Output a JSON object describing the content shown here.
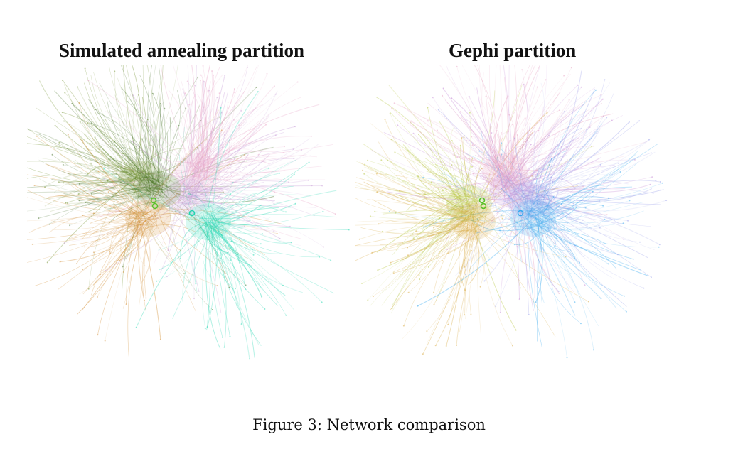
{
  "figure": {
    "caption": "Figure 3: Network comparison",
    "panels": [
      {
        "title": "Simulated annealing partition",
        "communities": [
          {
            "color": "#6f8f2a",
            "role": "upper-left cluster"
          },
          {
            "color": "#3d6b1e",
            "role": "dark green core"
          },
          {
            "color": "#d08a2c",
            "role": "orange cluster"
          },
          {
            "color": "#c9a0d8",
            "role": "lavender cluster"
          },
          {
            "color": "#e8a6c8",
            "role": "pink cluster"
          },
          {
            "color": "#1fd6b0",
            "role": "teal cluster"
          }
        ]
      },
      {
        "title": "Gephi partition",
        "communities": [
          {
            "color": "#b4c43a",
            "role": "yellow-green cluster"
          },
          {
            "color": "#d6a63a",
            "role": "gold cluster"
          },
          {
            "color": "#c890d8",
            "role": "violet cluster"
          },
          {
            "color": "#e7a0c0",
            "role": "pink cluster"
          },
          {
            "color": "#9aa0ea",
            "role": "periwinkle cluster"
          },
          {
            "color": "#34a8ee",
            "role": "blue cluster"
          }
        ]
      }
    ]
  }
}
